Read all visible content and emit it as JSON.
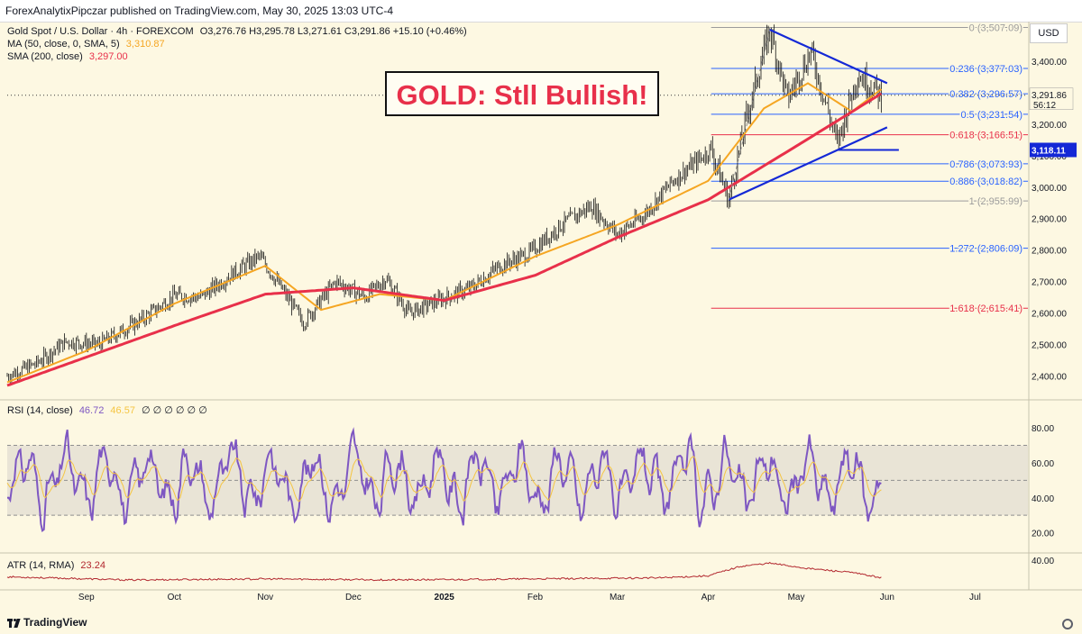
{
  "header": {
    "publisher": "ForexAnalytixPipczar published on TradingView.com, May 30, 2025 13:03 UTC-4"
  },
  "legend": {
    "symbol": "Gold Spot / U.S. Dollar · 4h · FOREXCOM",
    "ohlc": "O3,276.76  H3,295.78  L3,271.61  C3,291.86  +15.10 (+0.46%)",
    "ma50_label": "MA (50, close, 0, SMA, 5)",
    "ma50_value": "3,310.87",
    "sma200_label": "SMA (200, close)",
    "sma200_value": "3,297.00",
    "rsi_label": "RSI (14, close)",
    "rsi_value": "46.72",
    "rsi_ma_value": "46.57",
    "rsi_extra": "∅ ∅ ∅ ∅ ∅ ∅",
    "atr_label": "ATR (14, RMA)",
    "atr_value": "23.24"
  },
  "callout": {
    "text": "GOLD: Stll Bullish!"
  },
  "price_axis": {
    "currency": "USD",
    "last_price": "3,291.86",
    "countdown": "56:12",
    "support_price": "3,118.11"
  },
  "brand": {
    "name": "TradingView"
  },
  "colors": {
    "background": "#fdf8e2",
    "candle": "#111111",
    "ma50": "#f5a623",
    "sma200": "#e8304a",
    "rsi": "#7e57c2",
    "rsi_ma": "#f5c542",
    "atr": "#b2272e",
    "trendline": "#1428d6",
    "fib_blue": "#2962ff",
    "fib_red": "#e8304a",
    "fib_gray": "#9b9b9b",
    "callout_text": "#e8304a"
  },
  "chart_data": [
    {
      "type": "line",
      "panel": "price",
      "title": "",
      "y_scale": "linear",
      "ylim": [
        2330,
        3520
      ],
      "y_ticks": [
        2400,
        2500,
        2600,
        2700,
        2800,
        2900,
        3000,
        3100,
        3200,
        3300,
        3400
      ],
      "y_tick_labels": [
        "2,400.00",
        "2,500.00",
        "2,600.00",
        "2,700.00",
        "2,800.00",
        "2,900.00",
        "3,000.00",
        "3,100.00",
        "3,200.00",
        "3,300.00",
        "3,400.00"
      ],
      "x_tick_labels": [
        "Sep",
        "Oct",
        "Nov",
        "Dec",
        "2025",
        "Feb",
        "Mar",
        "Apr",
        "May",
        "Jun",
        "Jul"
      ],
      "x_tick_dates": [
        "2024-09-01",
        "2024-10-01",
        "2024-11-01",
        "2024-12-01",
        "2025-01-01",
        "2025-02-01",
        "2025-03-01",
        "2025-04-01",
        "2025-05-01",
        "2025-06-01",
        "2025-07-01"
      ],
      "x_range": [
        "2024-08-05",
        "2025-07-19"
      ],
      "price_path_dates": [
        "2024-08-05",
        "2024-08-15",
        "2024-08-25",
        "2024-09-05",
        "2024-09-20",
        "2024-10-01",
        "2024-10-10",
        "2024-10-20",
        "2024-10-30",
        "2024-11-05",
        "2024-11-14",
        "2024-11-25",
        "2024-12-05",
        "2024-12-12",
        "2024-12-20",
        "2024-12-30",
        "2025-01-10",
        "2025-01-20",
        "2025-01-30",
        "2025-02-10",
        "2025-02-20",
        "2025-03-01",
        "2025-03-10",
        "2025-03-20",
        "2025-04-02",
        "2025-04-08",
        "2025-04-14",
        "2025-04-22",
        "2025-04-28",
        "2025-05-06",
        "2025-05-15",
        "2025-05-22",
        "2025-05-30"
      ],
      "price_path_values": [
        2400,
        2440,
        2510,
        2500,
        2580,
        2655,
        2650,
        2720,
        2780,
        2700,
        2570,
        2700,
        2650,
        2710,
        2600,
        2640,
        2680,
        2750,
        2790,
        2880,
        2940,
        2850,
        2910,
        3020,
        3120,
        2960,
        3220,
        3500,
        3280,
        3430,
        3140,
        3360,
        3291.86
      ],
      "series": [
        {
          "name": "MA (50, close, 0, SMA, 5)",
          "dates": [
            "2024-08-05",
            "2024-09-01",
            "2024-10-01",
            "2024-11-01",
            "2024-11-20",
            "2024-12-10",
            "2025-01-01",
            "2025-02-01",
            "2025-03-01",
            "2025-04-01",
            "2025-04-20",
            "2025-05-05",
            "2025-05-20",
            "2025-05-30"
          ],
          "values": [
            2380,
            2480,
            2630,
            2750,
            2610,
            2660,
            2640,
            2780,
            2880,
            3020,
            3250,
            3330,
            3240,
            3310.87
          ]
        },
        {
          "name": "SMA (200, close)",
          "dates": [
            "2024-08-05",
            "2024-09-01",
            "2024-10-01",
            "2024-11-01",
            "2024-12-01",
            "2025-01-01",
            "2025-02-01",
            "2025-03-01",
            "2025-04-01",
            "2025-05-01",
            "2025-05-30"
          ],
          "values": [
            2370,
            2460,
            2560,
            2660,
            2680,
            2640,
            2720,
            2840,
            2960,
            3130,
            3297.0
          ]
        }
      ],
      "fibonacci": [
        {
          "ratio": "0",
          "price": "3,507.09",
          "value": 3507.09,
          "color": "#9b9b9b"
        },
        {
          "ratio": "0.236",
          "price": "3,377.03",
          "value": 3377.03,
          "color": "#2962ff"
        },
        {
          "ratio": "0.382",
          "price": "3,296.57",
          "value": 3296.57,
          "color": "#2962ff"
        },
        {
          "ratio": "0.5",
          "price": "3,231.54",
          "value": 3231.54,
          "color": "#2962ff"
        },
        {
          "ratio": "0.618",
          "price": "3,166.51",
          "value": 3166.51,
          "color": "#e8304a"
        },
        {
          "ratio": "0.786",
          "price": "3,073.93",
          "value": 3073.93,
          "color": "#2962ff"
        },
        {
          "ratio": "0.886",
          "price": "3,018.82",
          "value": 3018.82,
          "color": "#2962ff"
        },
        {
          "ratio": "1",
          "price": "2,955.99",
          "value": 2955.99,
          "color": "#9b9b9b"
        },
        {
          "ratio": "1.272",
          "price": "2,806.09",
          "value": 2806.09,
          "color": "#2962ff"
        },
        {
          "ratio": "1.618",
          "price": "2,615.41",
          "value": 2615.41,
          "color": "#e8304a"
        }
      ],
      "trendlines": [
        {
          "name": "upper",
          "from": [
            "2025-04-22",
            3500
          ],
          "to": [
            "2025-06-01",
            3330
          ]
        },
        {
          "name": "lower",
          "from": [
            "2025-04-08",
            2960
          ],
          "to": [
            "2025-06-01",
            3190
          ]
        },
        {
          "name": "left-edge",
          "from": [
            "2025-04-08",
            2960
          ],
          "to": [
            "2025-04-22",
            3500
          ]
        },
        {
          "name": "support",
          "from": [
            "2025-05-15",
            3118.11
          ],
          "to": [
            "2025-06-05",
            3118.11
          ]
        }
      ],
      "last_price": 3291.86,
      "support_level": 3118.11
    },
    {
      "type": "line",
      "panel": "rsi",
      "name": "RSI (14, close)",
      "ylim": [
        10,
        95
      ],
      "y_ticks": [
        20,
        40,
        60,
        80
      ],
      "y_tick_labels": [
        "20.00",
        "40.00",
        "60.00",
        "80.00"
      ],
      "band": [
        30,
        70
      ],
      "mid": 50,
      "last": 46.72,
      "ma_last": 46.57
    },
    {
      "type": "area",
      "panel": "atr",
      "name": "ATR (14, RMA)",
      "ylim": [
        15,
        45
      ],
      "y_ticks": [
        40
      ],
      "y_tick_labels": [
        "40.00"
      ],
      "dates": [
        "2024-08-05",
        "2024-09-15",
        "2024-11-01",
        "2024-12-15",
        "2025-02-01",
        "2025-03-15",
        "2025-04-01",
        "2025-04-12",
        "2025-04-22",
        "2025-05-05",
        "2025-05-20",
        "2025-05-30"
      ],
      "values": [
        24,
        21,
        22,
        21,
        22,
        23,
        25,
        34,
        37,
        32,
        28,
        23.24
      ]
    }
  ]
}
